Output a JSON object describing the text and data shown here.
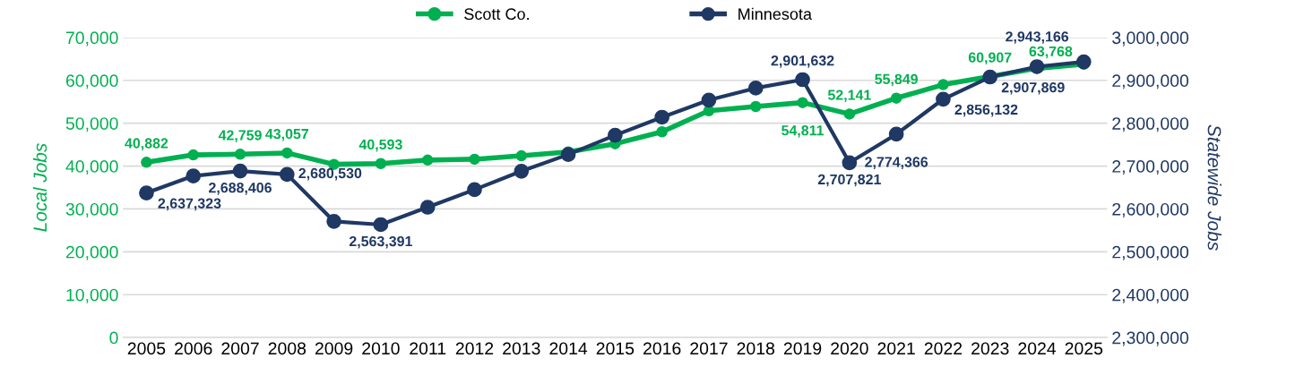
{
  "chart_data": {
    "type": "line",
    "categories": [
      "2005",
      "2006",
      "2007",
      "2008",
      "2009",
      "2010",
      "2011",
      "2012",
      "2013",
      "2014",
      "2015",
      "2016",
      "2017",
      "2018",
      "2019",
      "2020",
      "2021",
      "2022",
      "2023",
      "2024",
      "2025"
    ],
    "series": [
      {
        "name": "Scott Co.",
        "color": "#00b050",
        "values": [
          40882,
          42600,
          42759,
          43057,
          40400,
          40593,
          41400,
          41600,
          42400,
          43300,
          45200,
          48000,
          52900,
          53900,
          54811,
          52141,
          55849,
          59000,
          60907,
          62800,
          63768
        ],
        "value_labels": [
          "40,882",
          null,
          "42,759",
          "43,057",
          null,
          "40,593",
          null,
          null,
          null,
          null,
          null,
          null,
          null,
          null,
          "54,811",
          "52,141",
          "55,849",
          null,
          "60,907",
          null,
          "63,768"
        ]
      },
      {
        "name": "Minnesota",
        "color": "#1f3864",
        "axis": "y2",
        "values": [
          2637323,
          2677000,
          2688406,
          2680530,
          2571000,
          2563391,
          2604000,
          2645000,
          2688000,
          2727000,
          2772000,
          2814000,
          2854000,
          2882000,
          2901632,
          2707821,
          2774366,
          2856132,
          2907869,
          2932000,
          2943166
        ],
        "value_labels": [
          "2,637,323",
          null,
          "2,688,406",
          "2,680,530",
          null,
          "2,563,391",
          null,
          null,
          null,
          null,
          null,
          null,
          null,
          null,
          "2,901,632",
          "2,707,821",
          "2,774,366",
          "2,856,132",
          "2,907,869",
          null,
          "2,943,166"
        ]
      }
    ],
    "ylabel": "Local Jobs",
    "y2label": "Statewide Jobs",
    "ylim": [
      0,
      70000
    ],
    "yticks": [
      0,
      {
        "value": 10000,
        "label": "10,000"
      },
      {
        "value": 20000,
        "label": "20,000"
      },
      {
        "value": 30000,
        "label": "30,000"
      },
      {
        "value": 40000,
        "label": "40,000"
      },
      {
        "value": 50000,
        "label": "50,000"
      },
      {
        "value": 60000,
        "label": "60,000"
      },
      {
        "value": 70000,
        "label": "70,000"
      }
    ],
    "y2lim": [
      2300000,
      3000000
    ],
    "y2ticks": [
      {
        "value": 2300000,
        "label": "2,300,000"
      },
      {
        "value": 2400000,
        "label": "2,400,000"
      },
      {
        "value": 2500000,
        "label": "2,500,000"
      },
      {
        "value": 2600000,
        "label": "2,600,000"
      },
      {
        "value": 2700000,
        "label": "2,700,000"
      },
      {
        "value": 2800000,
        "label": "2,800,000"
      },
      {
        "value": 2900000,
        "label": "2,900,000"
      },
      {
        "value": 3000000,
        "label": "3,000,000"
      }
    ],
    "grid": "y",
    "legend": "top",
    "marker": "circle",
    "line_style": "solid"
  }
}
